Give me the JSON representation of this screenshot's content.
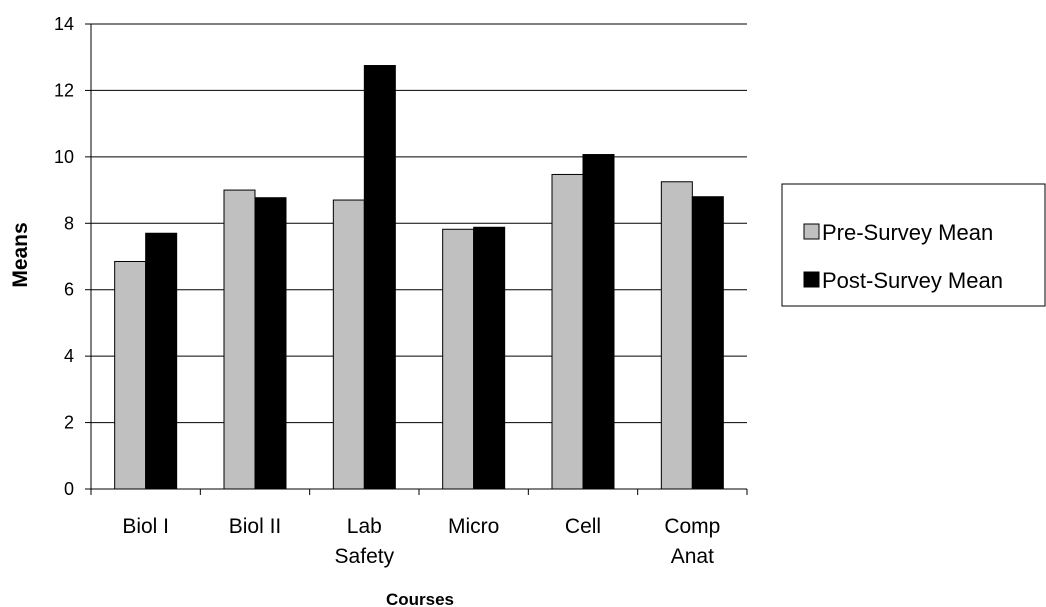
{
  "chart_data": {
    "type": "bar",
    "categories": [
      [
        "Biol I"
      ],
      [
        "Biol II"
      ],
      [
        "Lab",
        "Safety"
      ],
      [
        "Micro"
      ],
      [
        "Cell"
      ],
      [
        "Comp",
        "Anat"
      ]
    ],
    "series": [
      {
        "name": "Pre-Survey Mean",
        "color": "#c0c0c0",
        "values": [
          6.85,
          9.0,
          8.7,
          7.82,
          9.47,
          9.25
        ]
      },
      {
        "name": "Post-Survey Mean",
        "color": "#000000",
        "values": [
          7.7,
          8.77,
          12.75,
          7.88,
          10.07,
          8.8
        ]
      }
    ],
    "xlabel": "Courses",
    "ylabel": "Means",
    "ylim": [
      0,
      14
    ],
    "yticks": [
      0,
      2,
      4,
      6,
      8,
      10,
      12,
      14
    ],
    "grid": true,
    "legend_position": "right"
  }
}
